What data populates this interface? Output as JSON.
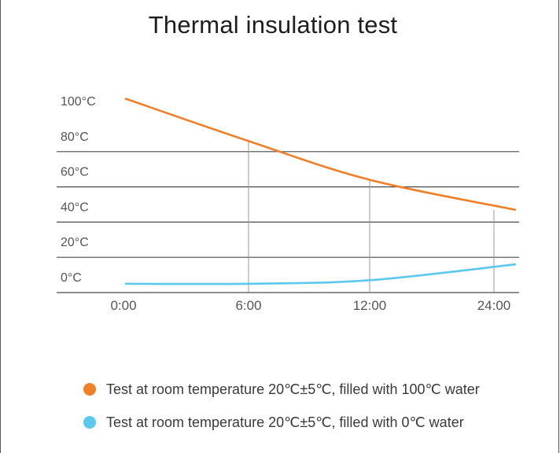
{
  "chart_data": {
    "type": "line",
    "title": "Thermal insulation test",
    "x": [
      "0:00",
      "6:00",
      "12:00",
      "24:00"
    ],
    "ylim": [
      0,
      100
    ],
    "y_ticks": [
      "100°C",
      "80°C",
      "60°C",
      "40°C",
      "20°C",
      "0°C"
    ],
    "y_tick_values": [
      100,
      80,
      60,
      40,
      20,
      0
    ],
    "grid": "horizontal",
    "legend_position": "bottom",
    "series": [
      {
        "name": "Test at room temperature 20℃±5℃, filled with 100℃ water",
        "color": "#f07f27",
        "values": [
          110,
          86,
          64,
          47
        ]
      },
      {
        "name": "Test at room temperature 20℃±5℃, filled with 0℃ water",
        "color": "#5bc8ee",
        "values": [
          5,
          5,
          7,
          16
        ]
      }
    ]
  }
}
